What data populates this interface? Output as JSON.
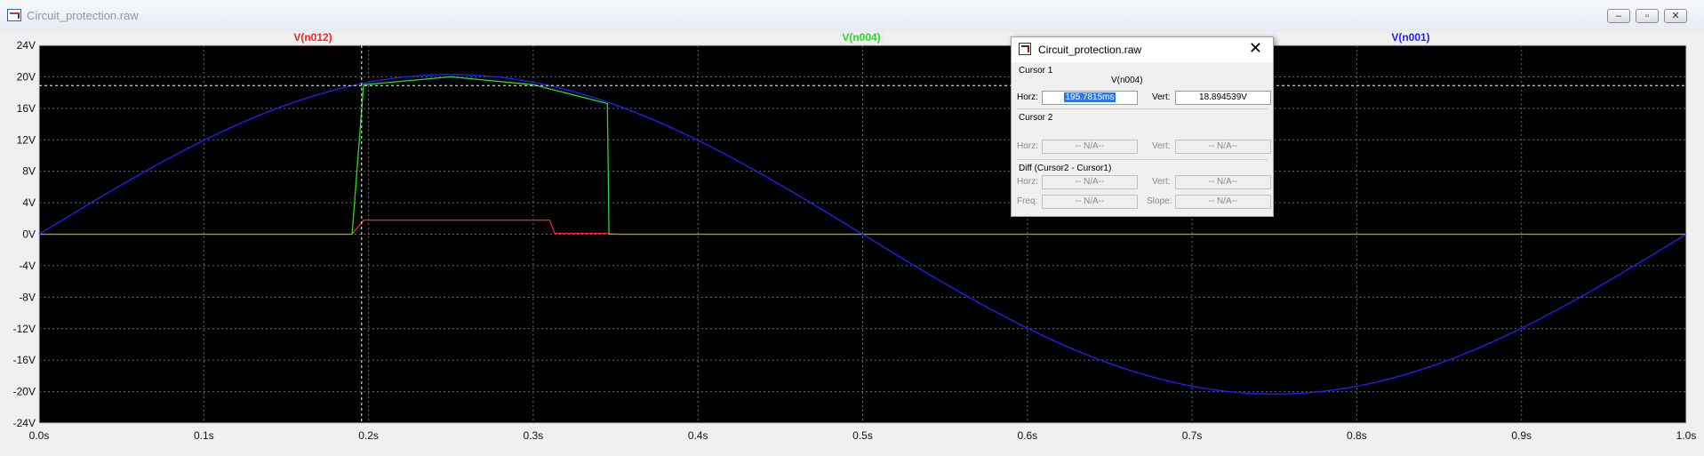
{
  "window": {
    "title": "Circuit_protection.raw",
    "buttons": {
      "minimize": "–",
      "maximize": "▫",
      "close": "✕"
    }
  },
  "chart_data": {
    "type": "line",
    "xlabel": "",
    "ylabel": "",
    "xlim": [
      0,
      1.0
    ],
    "ylim": [
      -24,
      24
    ],
    "grid": true,
    "x_ticks": [
      "0.0s",
      "0.1s",
      "0.2s",
      "0.3s",
      "0.4s",
      "0.5s",
      "0.6s",
      "0.7s",
      "0.8s",
      "0.9s",
      "1.0s"
    ],
    "y_ticks": [
      "24V",
      "20V",
      "16V",
      "12V",
      "8V",
      "4V",
      "0V",
      "-4V",
      "-8V",
      "-12V",
      "-16V",
      "-20V",
      "-24V"
    ],
    "series": [
      {
        "name": "V(n012)",
        "color": "#ff2020",
        "x": [
          0,
          0.19,
          0.197,
          0.31,
          0.313,
          0.346,
          0.35,
          1.0
        ],
        "y": [
          0,
          0,
          1.8,
          1.8,
          0.1,
          0.1,
          0,
          0
        ]
      },
      {
        "name": "V(n004)",
        "color": "#22dd22",
        "x": [
          0,
          0.19,
          0.197,
          0.25,
          0.3,
          0.345,
          0.346,
          0.35,
          1.0
        ],
        "y": [
          0,
          0,
          19.0,
          20.0,
          19.0,
          16.6,
          0,
          0,
          0
        ]
      },
      {
        "name": "V(n001)",
        "color": "#2020ff",
        "function": "20.3*sin(2*pi*x)",
        "amplitude": 20.3,
        "frequency_hz": 1
      }
    ],
    "cursor": {
      "x": 0.1958,
      "y": 18.894539
    }
  },
  "cursor_dialog": {
    "title": "Circuit_protection.raw",
    "cursor1": {
      "section": "Cursor 1",
      "trace": "V(n004)",
      "horz_label": "Horz:",
      "horz_value": "195.7815ms",
      "vert_label": "Vert:",
      "vert_value": "18.894539V"
    },
    "cursor2": {
      "section": "Cursor 2",
      "horz_label": "Horz:",
      "horz_value": "-- N/A--",
      "vert_label": "Vert:",
      "vert_value": "-- N/A--"
    },
    "diff": {
      "section": "Diff (Cursor2 - Cursor1)",
      "horz_label": "Horz:",
      "horz_value": "-- N/A--",
      "vert_label": "Vert:",
      "vert_value": "-- N/A--",
      "freq_label": "Freq:",
      "freq_value": "-- N/A--",
      "slope_label": "Slope:",
      "slope_value": "-- N/A--"
    }
  }
}
